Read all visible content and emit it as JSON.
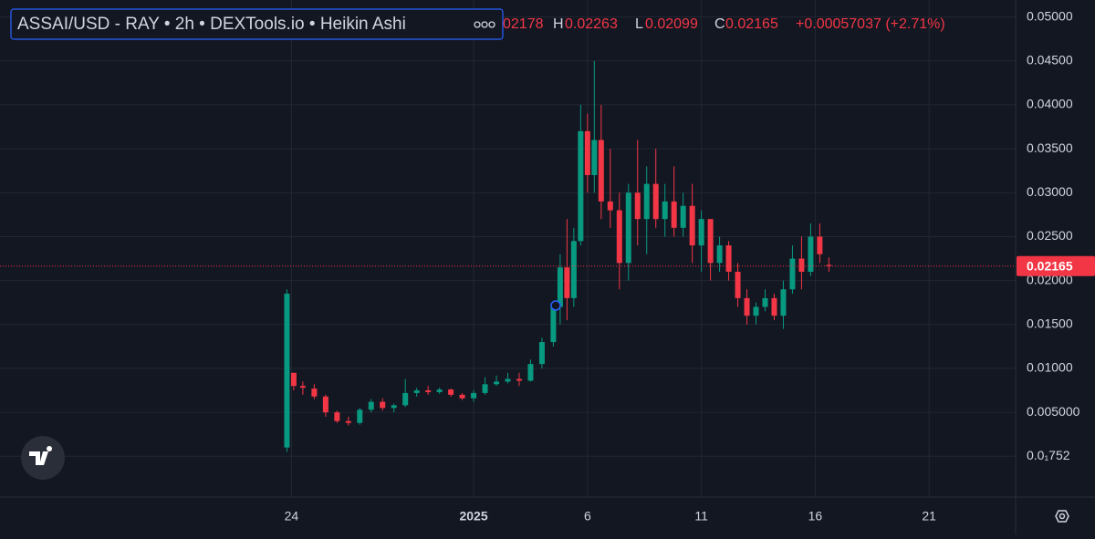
{
  "chart_data": {
    "type": "candlestick",
    "title": "ASSAI/USD - RAY • 2h • DEXTools.io • Heikin Ashi",
    "legend": {
      "open_fragment": "02178",
      "high_key": "H",
      "high": "0.02263",
      "low_key": "L",
      "low": "0.02099",
      "close_key": "C",
      "close": "0.02165",
      "change": "+0.00057037 (+2.71%)"
    },
    "up_color": "#089981",
    "down_color": "#f23645",
    "last_price": 0.02165,
    "x": [
      -0.2,
      0.1,
      0.5,
      1.0,
      1.5,
      2.0,
      2.5,
      3.0,
      3.5,
      4.0,
      4.5,
      5.0,
      5.5,
      6.0,
      6.5,
      7.0,
      7.5,
      8.0,
      8.5,
      9.0,
      9.5,
      10.0,
      10.5,
      11.0,
      11.5,
      11.8,
      12.1,
      12.4,
      12.7,
      13.0,
      13.3,
      13.6,
      14.0,
      14.4,
      14.8,
      15.2,
      15.6,
      16.0,
      16.4,
      16.8,
      17.2,
      17.6,
      18.0,
      18.4,
      18.8,
      19.2,
      19.6,
      20.0,
      20.4,
      20.8,
      21.2,
      21.6,
      22.0,
      22.4,
      22.8,
      23.2,
      23.6
    ],
    "open": [
      0.001,
      0.0095,
      0.008,
      0.0077,
      0.0068,
      0.005,
      0.004,
      0.0038,
      0.0053,
      0.0062,
      0.0055,
      0.0058,
      0.0072,
      0.0075,
      0.0073,
      0.0076,
      0.007,
      0.0066,
      0.0072,
      0.0082,
      0.0085,
      0.0088,
      0.0086,
      0.0105,
      0.013,
      0.017,
      0.0215,
      0.018,
      0.0245,
      0.037,
      0.032,
      0.036,
      0.029,
      0.028,
      0.022,
      0.03,
      0.027,
      0.031,
      0.027,
      0.029,
      0.026,
      0.0285,
      0.024,
      0.027,
      0.022,
      0.024,
      0.021,
      0.018,
      0.016,
      0.017,
      0.018,
      0.016,
      0.019,
      0.0225,
      0.021,
      0.025,
      0.02178
    ],
    "high": [
      0.019,
      0.0095,
      0.0085,
      0.0082,
      0.007,
      0.0052,
      0.0045,
      0.0055,
      0.0065,
      0.0066,
      0.006,
      0.0088,
      0.0078,
      0.008,
      0.0078,
      0.0077,
      0.0072,
      0.0075,
      0.009,
      0.0092,
      0.0095,
      0.0095,
      0.011,
      0.0135,
      0.0175,
      0.023,
      0.027,
      0.026,
      0.04,
      0.039,
      0.045,
      0.04,
      0.035,
      0.03,
      0.031,
      0.036,
      0.033,
      0.035,
      0.031,
      0.033,
      0.03,
      0.031,
      0.028,
      0.027,
      0.025,
      0.0245,
      0.022,
      0.019,
      0.0175,
      0.019,
      0.0185,
      0.02,
      0.024,
      0.025,
      0.0265,
      0.0265,
      0.02263
    ],
    "low": [
      0.0005,
      0.0075,
      0.007,
      0.0065,
      0.0045,
      0.0038,
      0.0035,
      0.0036,
      0.005,
      0.0052,
      0.005,
      0.0056,
      0.0068,
      0.007,
      0.0071,
      0.0068,
      0.0064,
      0.0062,
      0.007,
      0.008,
      0.0083,
      0.008,
      0.0085,
      0.01,
      0.0125,
      0.015,
      0.0155,
      0.017,
      0.024,
      0.03,
      0.03,
      0.027,
      0.026,
      0.019,
      0.02,
      0.024,
      0.023,
      0.026,
      0.025,
      0.025,
      0.025,
      0.022,
      0.021,
      0.02,
      0.021,
      0.02,
      0.017,
      0.015,
      0.015,
      0.0165,
      0.0155,
      0.0145,
      0.0185,
      0.019,
      0.0205,
      0.022,
      0.02099
    ],
    "close": [
      0.0185,
      0.008,
      0.0078,
      0.0068,
      0.005,
      0.004,
      0.0038,
      0.0053,
      0.0062,
      0.0055,
      0.0058,
      0.0072,
      0.0075,
      0.0073,
      0.0076,
      0.007,
      0.0066,
      0.0072,
      0.0082,
      0.0085,
      0.0088,
      0.0086,
      0.0105,
      0.013,
      0.017,
      0.0215,
      0.018,
      0.0245,
      0.037,
      0.032,
      0.036,
      0.029,
      0.028,
      0.022,
      0.03,
      0.027,
      0.031,
      0.027,
      0.029,
      0.026,
      0.0285,
      0.024,
      0.027,
      0.022,
      0.024,
      0.021,
      0.018,
      0.016,
      0.017,
      0.018,
      0.016,
      0.019,
      0.0225,
      0.021,
      0.025,
      0.023,
      0.02165
    ],
    "xlim": [
      -12.8,
      31.8
    ],
    "xticks": [
      {
        "value": 0,
        "label": "24"
      },
      {
        "value": 8,
        "label": "2025"
      },
      {
        "value": 13,
        "label": "6"
      },
      {
        "value": 18,
        "label": "11"
      },
      {
        "value": 23,
        "label": "16"
      },
      {
        "value": 28,
        "label": "21"
      }
    ],
    "ylim": [
      -0.00464,
      0.05193
    ],
    "yticks": [
      {
        "value": 7.52e-06,
        "label": "0.0₁752"
      },
      {
        "value": 0.005,
        "label": "0.005000"
      },
      {
        "value": 0.01,
        "label": "0.01000"
      },
      {
        "value": 0.015,
        "label": "0.01500"
      },
      {
        "value": 0.02,
        "label": "0.02000"
      },
      {
        "value": 0.025,
        "label": "0.02500"
      },
      {
        "value": 0.03,
        "label": "0.03000"
      },
      {
        "value": 0.035,
        "label": "0.03500"
      },
      {
        "value": 0.04,
        "label": "0.04000"
      },
      {
        "value": 0.045,
        "label": "0.04500"
      },
      {
        "value": 0.05,
        "label": "0.05000"
      }
    ],
    "grid": true
  }
}
